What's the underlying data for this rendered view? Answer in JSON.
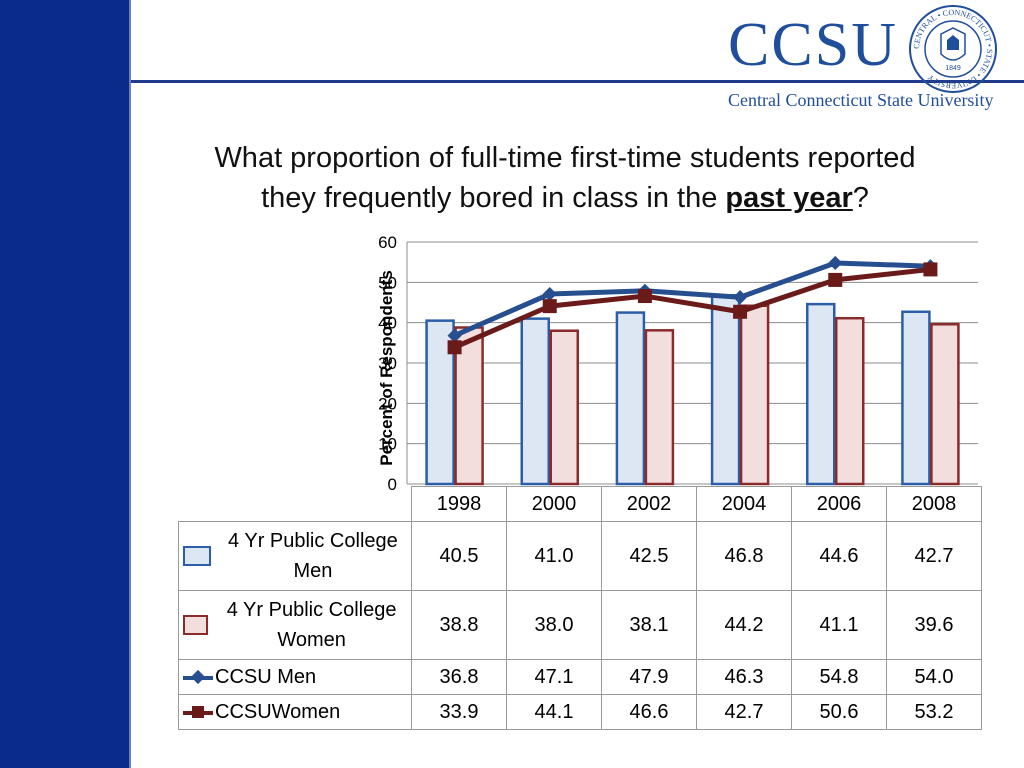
{
  "header": {
    "logo_text": "CCSU",
    "logo_subtitle": "Central Connecticut State University",
    "seal_text": "CENTRAL • CONNECTICUT • STATE • UNIVERSITY",
    "seal_year": "1849"
  },
  "title": {
    "line1": "What proportion of full-time first-time students reported",
    "line2_prefix": "they frequently bored in class in the ",
    "line2_emphasis": "past year",
    "line2_suffix": "?"
  },
  "colors": {
    "band": "#0a2a8c",
    "logo": "#1f4e9c",
    "men_line": "#274f8f",
    "women_line": "#6b1a1a",
    "men_bar_fill": "#dde7f3",
    "men_bar_stroke": "#2b5ea7",
    "women_bar_fill": "#f3dede",
    "women_bar_stroke": "#8b2a2a"
  },
  "chart_data": {
    "type": "bar",
    "categories": [
      "1998",
      "2000",
      "2002",
      "2004",
      "2006",
      "2008"
    ],
    "ylabel": "Percent of Respondents",
    "ylim": [
      0,
      60
    ],
    "yticks": [
      "0",
      "10",
      "20",
      "30",
      "40",
      "50",
      "60"
    ],
    "grid": true,
    "legend": "table-below",
    "series": [
      {
        "name": "4 Yr Public College Men",
        "type": "bar",
        "values": [
          40.5,
          41.0,
          42.5,
          46.8,
          44.6,
          42.7
        ],
        "display": [
          "40.5",
          "41.0",
          "42.5",
          "46.8",
          "44.6",
          "42.7"
        ]
      },
      {
        "name": "4 Yr Public College Women",
        "type": "bar",
        "values": [
          38.8,
          38.0,
          38.1,
          44.2,
          41.1,
          39.6
        ],
        "display": [
          "38.8",
          "38.0",
          "38.1",
          "44.2",
          "41.1",
          "39.6"
        ]
      },
      {
        "name": "CCSU Men",
        "type": "line",
        "marker": "diamond",
        "values": [
          36.8,
          47.1,
          47.9,
          46.3,
          54.8,
          54.0
        ],
        "display": [
          "36.8",
          "47.1",
          "47.9",
          "46.3",
          "54.8",
          "54.0"
        ]
      },
      {
        "name": "CCSUWomen",
        "type": "line",
        "marker": "square",
        "values": [
          33.9,
          44.1,
          46.6,
          42.7,
          50.6,
          53.2
        ],
        "display": [
          "33.9",
          "44.1",
          "46.6",
          "42.7",
          "50.6",
          "53.2"
        ]
      }
    ]
  }
}
